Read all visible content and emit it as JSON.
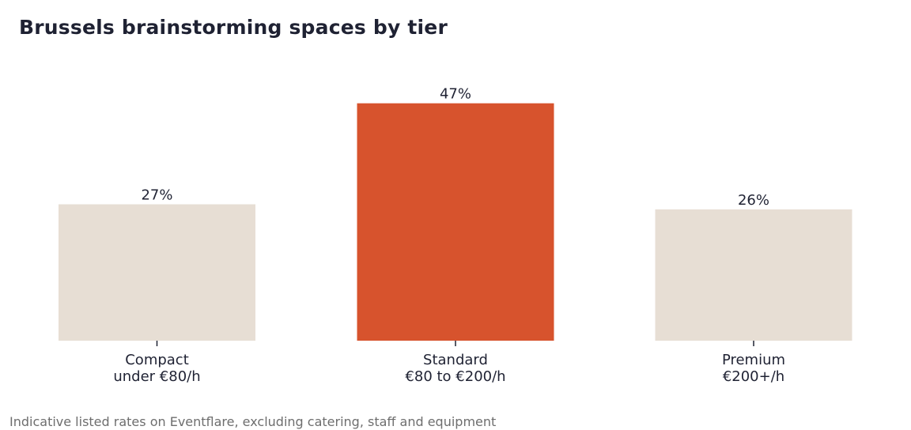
{
  "chart_data": {
    "type": "bar",
    "title": "Brussels brainstorming spaces by tier",
    "categories": [
      "Compact\nunder €80/h",
      "Standard\n€80 to €200/h",
      "Premium\n€200+/h"
    ],
    "values": [
      27,
      47,
      26
    ],
    "value_labels": [
      "27%",
      "47%",
      "26%"
    ],
    "unit": "%",
    "ylim": [
      0,
      50
    ],
    "grid": false,
    "colors": [
      "#e7ded4",
      "#d7532d",
      "#e7ded4"
    ],
    "text_color": "#1f2233",
    "footnote": "Indicative listed rates on Eventflare, excluding catering, staff and equipment"
  }
}
